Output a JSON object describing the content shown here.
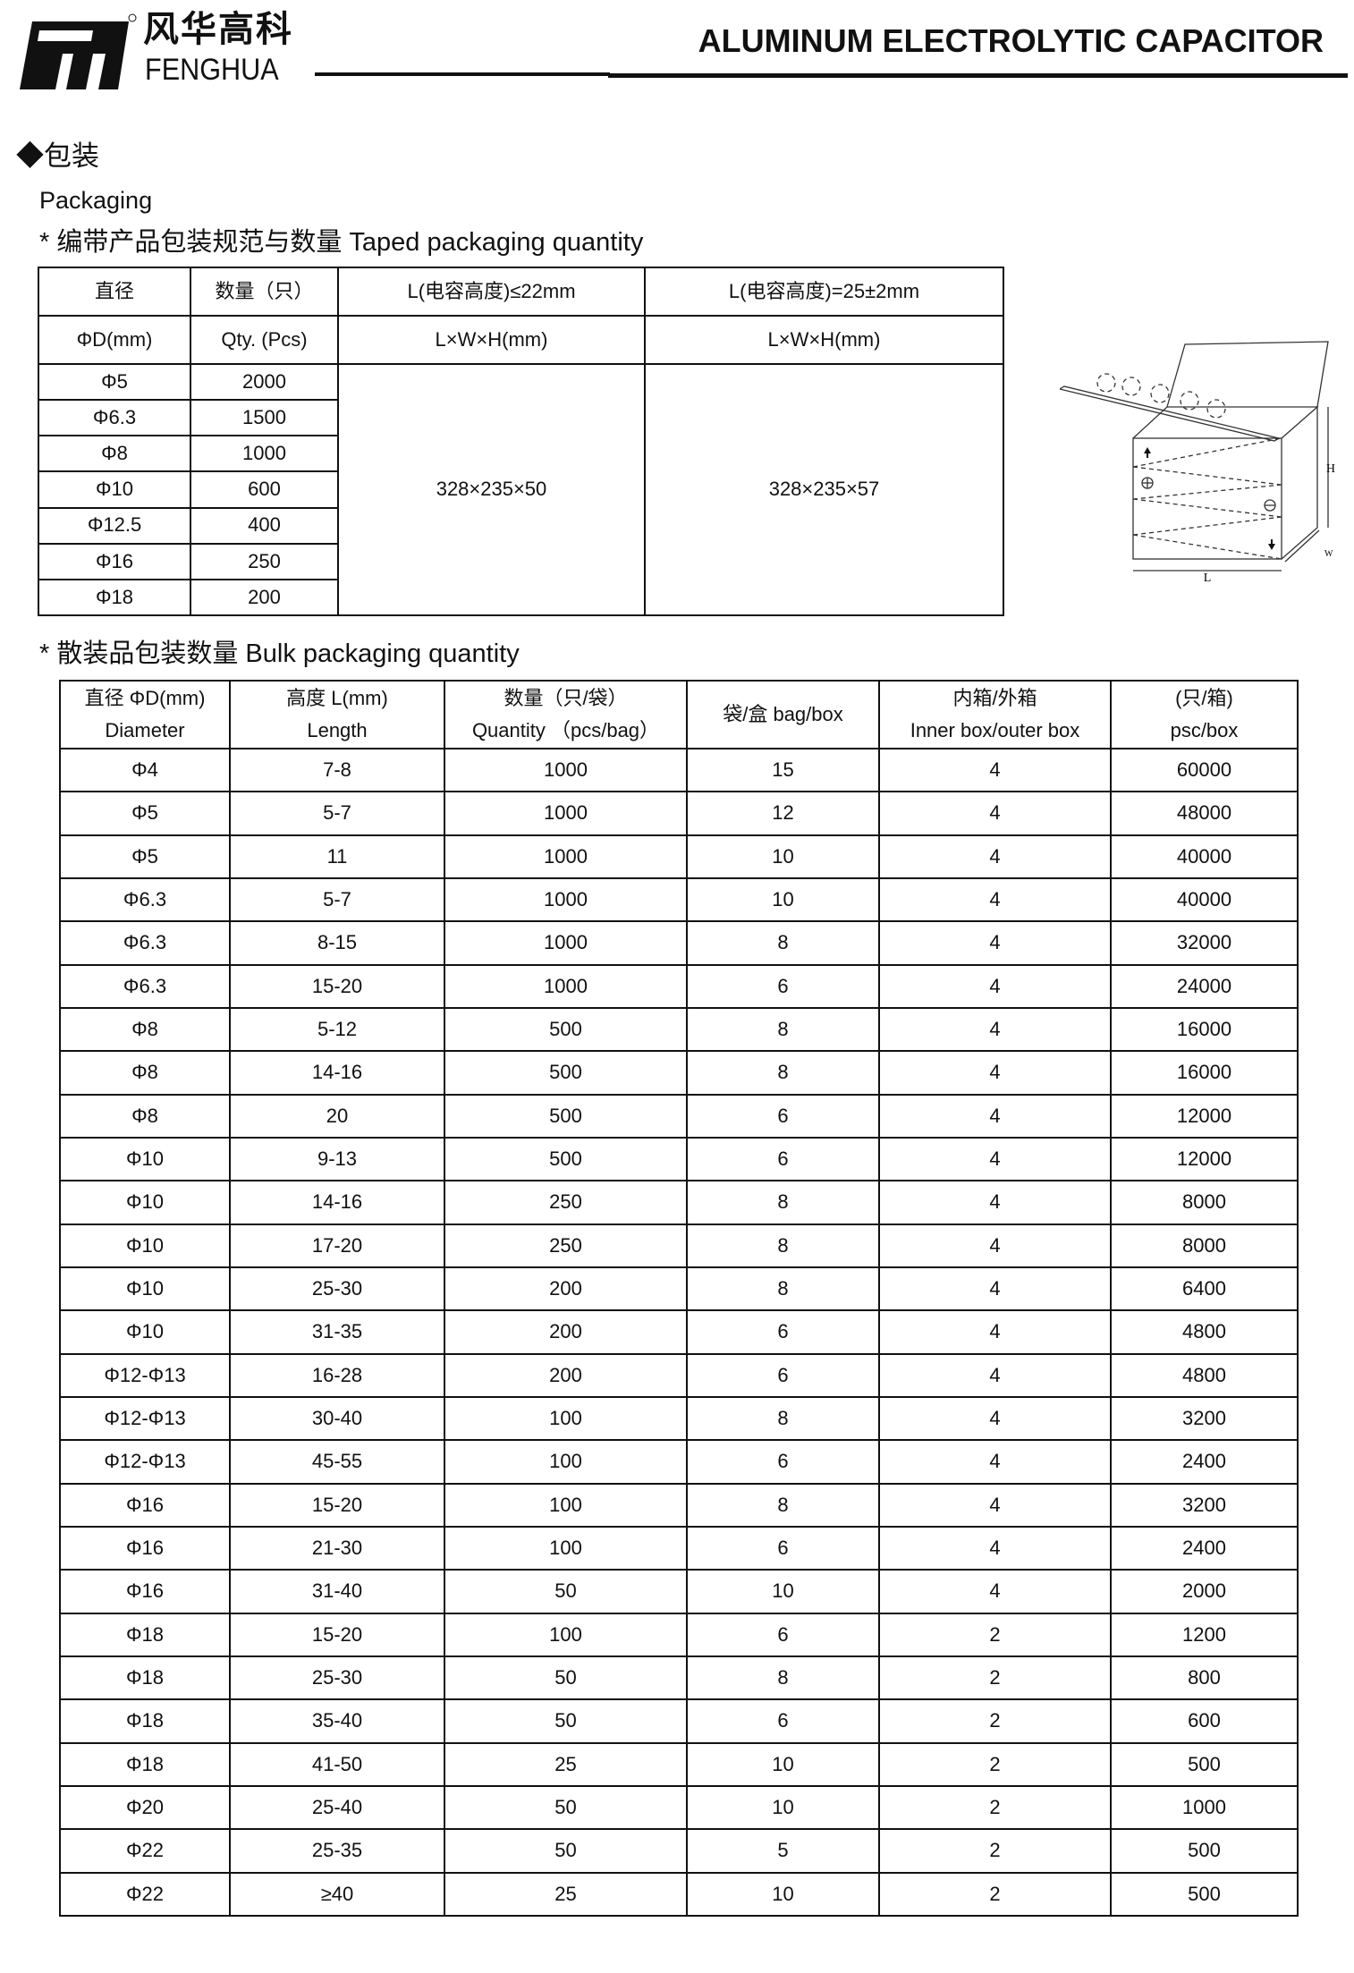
{
  "header": {
    "logo_cn": "风华高科",
    "logo_en": "FENGHUA",
    "logo_mark": "registered",
    "title": "ALUMINUM ELECTROLYTIC CAPACITOR"
  },
  "section": {
    "title": "◆包装",
    "subtitle": "Packaging"
  },
  "taped": {
    "heading": "*  编带产品包装规范与数量    Taped packaging quantity",
    "headers": {
      "dia_cn": "直径",
      "dia_en": "ΦD(mm)",
      "qty_cn": "数量（只）",
      "qty_en": "Qty. (Pcs)",
      "col_a": "L(电容高度)≤22mm",
      "col_b": "L(电容高度)=25±2mm",
      "dim_a": "L×W×H(mm)",
      "dim_b": "L×W×H(mm)"
    },
    "rows": [
      [
        "Φ5",
        "2000"
      ],
      [
        "Φ6.3",
        "1500"
      ],
      [
        "Φ8",
        "1000"
      ],
      [
        "Φ10",
        "600"
      ],
      [
        "Φ12.5",
        "400"
      ],
      [
        "Φ16",
        "250"
      ],
      [
        "Φ18",
        "200"
      ]
    ],
    "box_a": "328×235×50",
    "box_b": "328×235×57"
  },
  "diagram": {
    "label_l": "L",
    "label_h": "H",
    "label_w": "W"
  },
  "bulk": {
    "heading": "*  散装品包装数量   Bulk packaging quantity",
    "headers": [
      [
        "直径 ΦD(mm)",
        "Diameter"
      ],
      [
        "高度 L(mm)",
        "Length"
      ],
      [
        "数量（只/袋）",
        "Quantity （pcs/bag）"
      ],
      [
        "袋/盒 bag/box"
      ],
      [
        "内箱/外箱",
        "Inner box/outer box"
      ],
      [
        "(只/箱)",
        "psc/box"
      ]
    ],
    "rows": [
      [
        "Φ4",
        "7-8",
        "1000",
        "15",
        "4",
        "60000"
      ],
      [
        "Φ5",
        "5-7",
        "1000",
        "12",
        "4",
        "48000"
      ],
      [
        "Φ5",
        "11",
        "1000",
        "10",
        "4",
        "40000"
      ],
      [
        "Φ6.3",
        "5-7",
        "1000",
        "10",
        "4",
        "40000"
      ],
      [
        "Φ6.3",
        "8-15",
        "1000",
        "8",
        "4",
        "32000"
      ],
      [
        "Φ6.3",
        "15-20",
        "1000",
        "6",
        "4",
        "24000"
      ],
      [
        "Φ8",
        "5-12",
        "500",
        "8",
        "4",
        "16000"
      ],
      [
        "Φ8",
        "14-16",
        "500",
        "8",
        "4",
        "16000"
      ],
      [
        "Φ8",
        "20",
        "500",
        "6",
        "4",
        "12000"
      ],
      [
        "Φ10",
        "9-13",
        "500",
        "6",
        "4",
        "12000"
      ],
      [
        "Φ10",
        "14-16",
        "250",
        "8",
        "4",
        "8000"
      ],
      [
        "Φ10",
        "17-20",
        "250",
        "8",
        "4",
        "8000"
      ],
      [
        "Φ10",
        "25-30",
        "200",
        "8",
        "4",
        "6400"
      ],
      [
        "Φ10",
        "31-35",
        "200",
        "6",
        "4",
        "4800"
      ],
      [
        "Φ12-Φ13",
        "16-28",
        "200",
        "6",
        "4",
        "4800"
      ],
      [
        "Φ12-Φ13",
        "30-40",
        "100",
        "8",
        "4",
        "3200"
      ],
      [
        "Φ12-Φ13",
        "45-55",
        "100",
        "6",
        "4",
        "2400"
      ],
      [
        "Φ16",
        "15-20",
        "100",
        "8",
        "4",
        "3200"
      ],
      [
        "Φ16",
        "21-30",
        "100",
        "6",
        "4",
        "2400"
      ],
      [
        "Φ16",
        "31-40",
        "50",
        "10",
        "4",
        "2000"
      ],
      [
        "Φ18",
        "15-20",
        "100",
        "6",
        "2",
        "1200"
      ],
      [
        "Φ18",
        "25-30",
        "50",
        "8",
        "2",
        "800"
      ],
      [
        "Φ18",
        "35-40",
        "50",
        "6",
        "2",
        "600"
      ],
      [
        "Φ18",
        "41-50",
        "25",
        "10",
        "2",
        "500"
      ],
      [
        "Φ20",
        "25-40",
        "50",
        "10",
        "2",
        "1000"
      ],
      [
        "Φ22",
        "25-35",
        "50",
        "5",
        "2",
        "500"
      ],
      [
        "Φ22",
        "≥40",
        "25",
        "10",
        "2",
        "500"
      ]
    ]
  }
}
